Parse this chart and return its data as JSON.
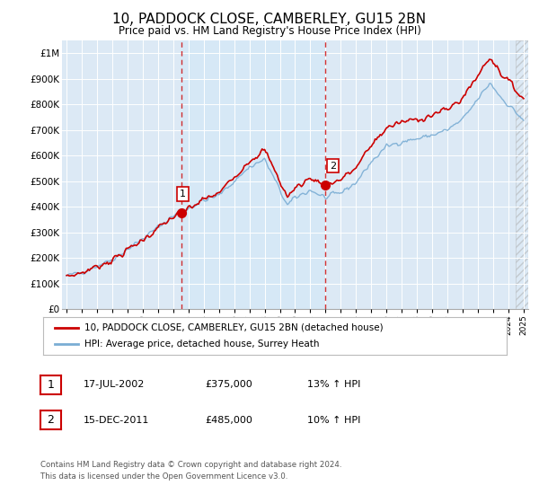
{
  "title": "10, PADDOCK CLOSE, CAMBERLEY, GU15 2BN",
  "subtitle": "Price paid vs. HM Land Registry's House Price Index (HPI)",
  "background_color": "#ffffff",
  "plot_bg_color": "#dce9f5",
  "plot_bg_between_color": "#c8ddf0",
  "grid_color": "#ffffff",
  "hpi_line_color": "#7aadd4",
  "price_line_color": "#cc0000",
  "sale1_year": 2002.54,
  "sale1_price": 375000,
  "sale2_year": 2011.96,
  "sale2_price": 485000,
  "ylim_min": 0,
  "ylim_max": 1050000,
  "yticks": [
    0,
    100000,
    200000,
    300000,
    400000,
    500000,
    600000,
    700000,
    800000,
    900000,
    1000000
  ],
  "ytick_labels": [
    "£0",
    "£100K",
    "£200K",
    "£300K",
    "£400K",
    "£500K",
    "£600K",
    "£700K",
    "£800K",
    "£900K",
    "£1M"
  ],
  "legend_line1": "10, PADDOCK CLOSE, CAMBERLEY, GU15 2BN (detached house)",
  "legend_line2": "HPI: Average price, detached house, Surrey Heath",
  "table_row1_num": "1",
  "table_row1_date": "17-JUL-2002",
  "table_row1_price": "£375,000",
  "table_row1_hpi": "13% ↑ HPI",
  "table_row2_num": "2",
  "table_row2_date": "15-DEC-2011",
  "table_row2_price": "£485,000",
  "table_row2_hpi": "10% ↑ HPI",
  "footnote1": "Contains HM Land Registry data © Crown copyright and database right 2024.",
  "footnote2": "This data is licensed under the Open Government Licence v3.0.",
  "xstart": 1995,
  "xend": 2025
}
